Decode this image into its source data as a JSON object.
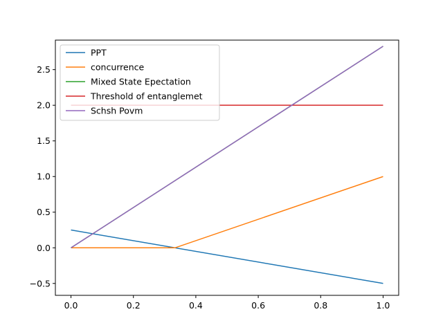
{
  "chart_data": {
    "type": "line",
    "title": "",
    "xlabel": "",
    "ylabel": "",
    "xlim": [
      -0.05,
      1.05
    ],
    "ylim": [
      -0.667,
      2.914
    ],
    "x_ticks": [
      0.0,
      0.2,
      0.4,
      0.6,
      0.8,
      1.0
    ],
    "x_tick_labels": [
      "0.0",
      "0.2",
      "0.4",
      "0.6",
      "0.8",
      "1.0"
    ],
    "y_ticks": [
      -0.5,
      0.0,
      0.5,
      1.0,
      1.5,
      2.0,
      2.5
    ],
    "y_tick_labels": [
      "−0.5",
      "0.0",
      "0.5",
      "1.0",
      "1.5",
      "2.0",
      "2.5"
    ],
    "grid": false,
    "legend_position": "top-left",
    "series": [
      {
        "name": "PPT",
        "color": "#1f77b4",
        "points": [
          [
            0,
            0.25
          ],
          [
            1,
            -0.5
          ]
        ]
      },
      {
        "name": "concurrence",
        "color": "#ff7f0e",
        "points": [
          [
            0,
            0
          ],
          [
            0.3333,
            0
          ],
          [
            1,
            1
          ]
        ]
      },
      {
        "name": "Mixed State Epectation",
        "color": "#2ca02c",
        "points": [
          [
            0,
            0
          ],
          [
            1,
            2.828
          ]
        ]
      },
      {
        "name": "Threshold of entanglemet",
        "color": "#d62728",
        "points": [
          [
            0,
            2
          ],
          [
            1,
            2
          ]
        ]
      },
      {
        "name": "Schsh Povm",
        "color": "#9467bd",
        "points": [
          [
            0,
            0
          ],
          [
            1,
            2.828
          ]
        ]
      }
    ]
  }
}
